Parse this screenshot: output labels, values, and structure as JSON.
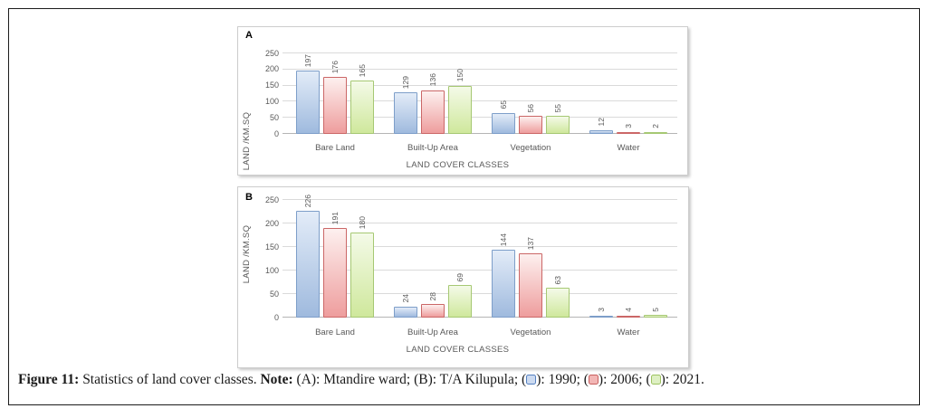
{
  "figure": {
    "caption": {
      "figure_label": "Figure 11:",
      "body": "Statistics of land cover classes.",
      "note_label": "Note:",
      "note_body": "(A): Mtandire ward; (B): T/A Kilupula;",
      "legend": [
        {
          "year": "1990",
          "fill": "#ccdaf0",
          "border": "#537fc0"
        },
        {
          "year": "2006",
          "fill": "#f2b6b5",
          "border": "#c75f5e"
        },
        {
          "year": "2021",
          "fill": "#def0c3",
          "border": "#9dc260"
        }
      ]
    }
  },
  "chart_data": [
    {
      "type": "bar",
      "panel_label": "A",
      "xlabel": "LAND COVER CLASSES",
      "ylabel": "LAND /KM.SQ",
      "ylim": [
        0,
        250
      ],
      "yticks": [
        0,
        50,
        100,
        150,
        200,
        250
      ],
      "grid": true,
      "legend_position": "caption",
      "categories": [
        "Bare Land",
        "Built-Up Area",
        "Vegetation",
        "Water"
      ],
      "series": [
        {
          "name": "1990",
          "values": [
            197,
            129,
            65,
            12
          ],
          "fill_top": "#e3ecf8",
          "fill_bottom": "#9fbade",
          "border": "#7d9ec9"
        },
        {
          "name": "2006",
          "values": [
            176,
            136,
            56,
            3
          ],
          "fill_top": "#fdf0ef",
          "fill_bottom": "#ee9d9d",
          "border": "#cb6767"
        },
        {
          "name": "2021",
          "values": [
            165,
            150,
            55,
            2
          ],
          "fill_top": "#f4fae8",
          "fill_bottom": "#cfe89c",
          "border": "#a6c873"
        }
      ]
    },
    {
      "type": "bar",
      "panel_label": "B",
      "xlabel": "LAND COVER CLASSES",
      "ylabel": "LAND /KM.SQ",
      "ylim": [
        0,
        250
      ],
      "yticks": [
        0,
        50,
        100,
        150,
        200,
        250
      ],
      "grid": true,
      "legend_position": "caption",
      "categories": [
        "Bare Land",
        "Built-Up Area",
        "Vegetation",
        "Water"
      ],
      "series": [
        {
          "name": "1990",
          "values": [
            226,
            24,
            144,
            3
          ],
          "fill_top": "#e3ecf8",
          "fill_bottom": "#9fbade",
          "border": "#7d9ec9"
        },
        {
          "name": "2006",
          "values": [
            191,
            28,
            137,
            4
          ],
          "fill_top": "#fdf0ef",
          "fill_bottom": "#ee9d9d",
          "border": "#cb6767"
        },
        {
          "name": "2021",
          "values": [
            180,
            69,
            63,
            5
          ],
          "fill_top": "#f4fae8",
          "fill_bottom": "#cfe89c",
          "border": "#a6c873"
        }
      ]
    }
  ]
}
